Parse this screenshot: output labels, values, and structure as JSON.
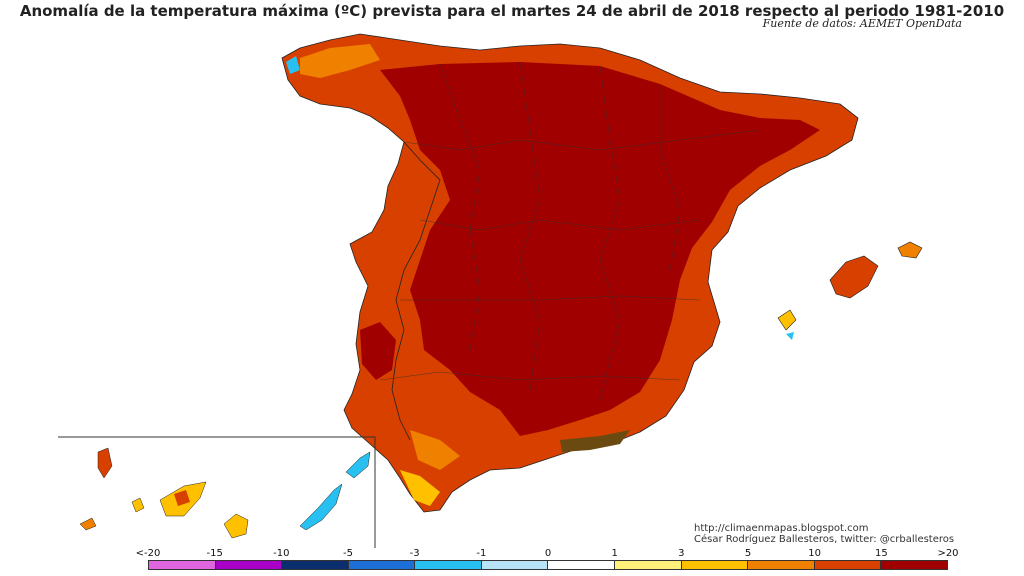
{
  "header": {
    "title": "Anomalía de la temperatura máxima (ºC) prevista para el martes 24 de abril de 2018 respecto al periodo 1981-2010",
    "source": "Fuente de datos: AEMET OpenData"
  },
  "credits": {
    "blog": "http://climaenmapas.blogspot.com",
    "author": "César Rodríguez Ballesteros, twitter: @crballesteros"
  },
  "legend": {
    "ticks": [
      "<-20",
      "-15",
      "-10",
      "-5",
      "-3",
      "-1",
      "0",
      "1",
      "3",
      "5",
      "10",
      "15",
      ">20"
    ],
    "colors": [
      "#e066e0",
      "#a800c8",
      "#0a2e6e",
      "#1e6ed8",
      "#28c0f0",
      "#b8e4f8",
      "#ffffff",
      "#fff07a",
      "#ffc000",
      "#f08000",
      "#d84000",
      "#a00000",
      "#6a4a10"
    ]
  },
  "map_colors": {
    "strong": "#a00000",
    "moderate": "#d84000",
    "mild": "#f08000",
    "light": "#ffc000",
    "cool": "#28c0f0",
    "extreme": "#6a4a10"
  }
}
